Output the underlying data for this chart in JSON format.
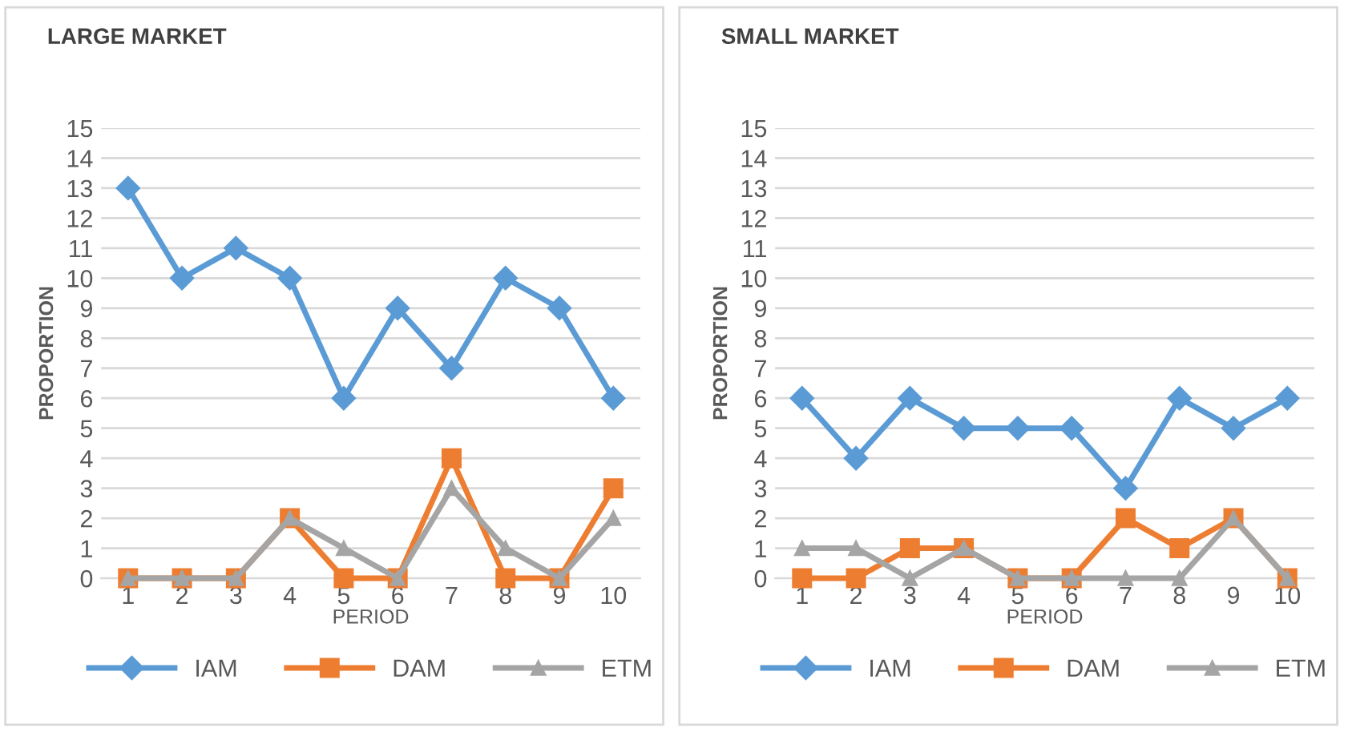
{
  "chart_data": [
    {
      "type": "line",
      "title": "LARGE MARKET",
      "xlabel": "PERIOD",
      "ylabel": "PROPORTION",
      "categories": [
        "1",
        "2",
        "3",
        "4",
        "5",
        "6",
        "7",
        "8",
        "9",
        "10"
      ],
      "ylim": [
        0,
        15
      ],
      "yticks": [
        0,
        1,
        2,
        3,
        4,
        5,
        6,
        7,
        8,
        9,
        10,
        11,
        12,
        13,
        14,
        15
      ],
      "grid": "y",
      "legend": "bottom",
      "series": [
        {
          "name": "IAM",
          "color": "#5b9bd5",
          "marker": "diamond",
          "values": [
            13,
            10,
            11,
            10,
            6,
            9,
            7,
            10,
            9,
            6
          ]
        },
        {
          "name": "DAM",
          "color": "#ed7d31",
          "marker": "square",
          "values": [
            0,
            0,
            0,
            2,
            0,
            0,
            4,
            0,
            0,
            3
          ]
        },
        {
          "name": "ETM",
          "color": "#a5a5a5",
          "marker": "triangle",
          "values": [
            0,
            0,
            0,
            2,
            1,
            0,
            3,
            1,
            0,
            2
          ]
        }
      ]
    },
    {
      "type": "line",
      "title": "SMALL MARKET",
      "xlabel": "PERIOD",
      "ylabel": "PROPORTION",
      "categories": [
        "1",
        "2",
        "3",
        "4",
        "5",
        "6",
        "7",
        "8",
        "9",
        "10"
      ],
      "ylim": [
        0,
        15
      ],
      "yticks": [
        0,
        1,
        2,
        3,
        4,
        5,
        6,
        7,
        8,
        9,
        10,
        11,
        12,
        13,
        14,
        15
      ],
      "grid": "y",
      "legend": "bottom",
      "series": [
        {
          "name": "IAM",
          "color": "#5b9bd5",
          "marker": "diamond",
          "values": [
            6,
            4,
            6,
            5,
            5,
            5,
            3,
            6,
            5,
            6
          ]
        },
        {
          "name": "DAM",
          "color": "#ed7d31",
          "marker": "square",
          "values": [
            0,
            0,
            1,
            1,
            0,
            0,
            2,
            1,
            2,
            0
          ]
        },
        {
          "name": "ETM",
          "color": "#a5a5a5",
          "marker": "triangle",
          "values": [
            1,
            1,
            0,
            1,
            0,
            0,
            0,
            0,
            2,
            0
          ]
        }
      ]
    }
  ]
}
